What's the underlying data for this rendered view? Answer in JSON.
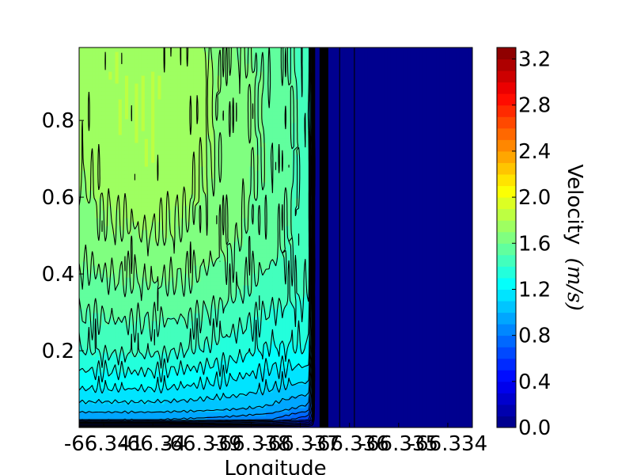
{
  "chart_data": {
    "type": "contour",
    "colormap": "jet",
    "xlabel": "Longitude",
    "ylabel": "",
    "x_ticks": [
      "-66.341",
      "-66.340",
      "-66.339",
      "-66.338",
      "-66.337",
      "-66.336",
      "-66.335",
      "-66.334"
    ],
    "x_tick_display": [
      "-66.341",
      "-66.34",
      "-66.339",
      "-66.338",
      "-66.337",
      "-66.336",
      "-66.335",
      "-66.334"
    ],
    "y_ticks": [
      "0.2",
      "0.4",
      "0.6",
      "0.8"
    ],
    "xlim": [
      -66.3415,
      -66.3335
    ],
    "ylim": [
      0.0,
      0.99
    ],
    "colorbar": {
      "label": "Velocity $(m/s)$",
      "label_text": "Velocity",
      "label_unit": "(m/s)",
      "ticks": [
        "0.0",
        "0.4",
        "0.8",
        "1.2",
        "1.6",
        "2.0",
        "2.4",
        "2.8",
        "3.2"
      ],
      "range": [
        0.0,
        3.3
      ],
      "levels": 33
    },
    "contour_levels": [
      0.0,
      0.1,
      0.2,
      0.3,
      0.4,
      0.5,
      0.6,
      0.7,
      0.8,
      0.9,
      1.0,
      1.1,
      1.2,
      1.3,
      1.4,
      1.5,
      1.6,
      1.7
    ],
    "field": {
      "description_of_shape": "velocity grows from 0 at the bed to ~1.7-1.8 m/s aloft on the western side; eastern side (~-66.3365 onward) is ~0",
      "boundary_x": -66.3366,
      "x_samples": [
        -66.3415,
        -66.3408,
        -66.34,
        -66.3392,
        -66.3384,
        -66.3376,
        -66.3368,
        -66.3367
      ],
      "y_samples": [
        0.0,
        0.02,
        0.05,
        0.1,
        0.2,
        0.35,
        0.5,
        0.7,
        0.9,
        0.99
      ],
      "values": [
        [
          0.0,
          0.9,
          1.05,
          1.2,
          1.4,
          1.55,
          1.65,
          1.72,
          1.74,
          1.73
        ],
        [
          0.0,
          0.9,
          1.05,
          1.2,
          1.42,
          1.57,
          1.68,
          1.78,
          1.79,
          1.78
        ],
        [
          0.0,
          0.9,
          1.05,
          1.2,
          1.42,
          1.58,
          1.7,
          1.79,
          1.8,
          1.76
        ],
        [
          0.0,
          0.88,
          1.04,
          1.18,
          1.4,
          1.57,
          1.68,
          1.74,
          1.77,
          1.74
        ],
        [
          0.0,
          0.85,
          1.02,
          1.15,
          1.35,
          1.52,
          1.62,
          1.66,
          1.65,
          1.62
        ],
        [
          0.0,
          0.8,
          0.98,
          1.1,
          1.28,
          1.45,
          1.55,
          1.58,
          1.58,
          1.56
        ],
        [
          0.0,
          0.6,
          0.85,
          1.05,
          1.3,
          1.4,
          1.45,
          1.45,
          1.45,
          1.45
        ],
        [
          0.0,
          0.0,
          0.0,
          0.0,
          0.0,
          0.0,
          0.0,
          0.0,
          0.0,
          0.0
        ]
      ]
    }
  }
}
